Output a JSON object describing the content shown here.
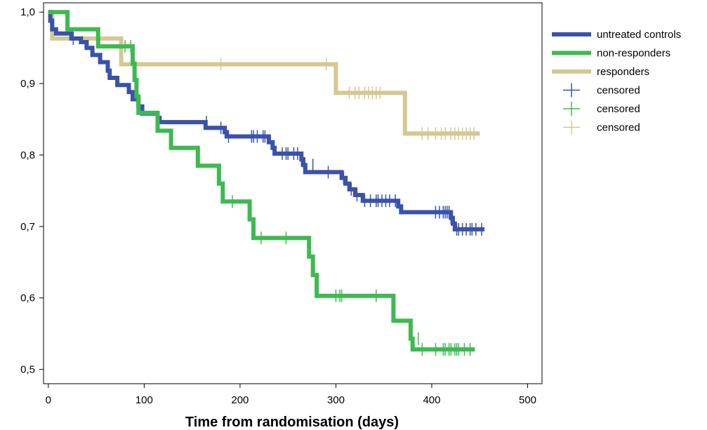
{
  "chart_data": {
    "type": "line",
    "title": "",
    "xlabel": "Time from randomisation (days)",
    "ylabel": "",
    "xlim": [
      -5,
      515
    ],
    "ylim": [
      0.48,
      1.013
    ],
    "xticks": [
      0,
      100,
      200,
      300,
      400,
      500
    ],
    "yticks": [
      0.5,
      0.6,
      0.7,
      0.8,
      0.9,
      1.0
    ],
    "ytick_labels": [
      "0,5",
      "0,6",
      "0,7",
      "0,8",
      "0,9",
      "1,0"
    ],
    "grid": false,
    "legend_position": "right",
    "series": [
      {
        "name": "untreated controls",
        "color": "#3a52a8",
        "steps": [
          [
            0,
            1.0
          ],
          [
            2,
            0.988
          ],
          [
            4,
            0.976
          ],
          [
            8,
            0.97
          ],
          [
            24,
            0.963
          ],
          [
            34,
            0.958
          ],
          [
            40,
            0.95
          ],
          [
            46,
            0.94
          ],
          [
            54,
            0.93
          ],
          [
            62,
            0.918
          ],
          [
            64,
            0.908
          ],
          [
            72,
            0.898
          ],
          [
            84,
            0.888
          ],
          [
            88,
            0.878
          ],
          [
            94,
            0.868
          ],
          [
            98,
            0.858
          ],
          [
            114,
            0.852
          ],
          [
            116,
            0.846
          ],
          [
            164,
            0.838
          ],
          [
            184,
            0.832
          ],
          [
            186,
            0.826
          ],
          [
            230,
            0.818
          ],
          [
            234,
            0.81
          ],
          [
            236,
            0.802
          ],
          [
            264,
            0.794
          ],
          [
            266,
            0.786
          ],
          [
            268,
            0.776
          ],
          [
            306,
            0.768
          ],
          [
            310,
            0.76
          ],
          [
            314,
            0.752
          ],
          [
            320,
            0.744
          ],
          [
            328,
            0.736
          ],
          [
            365,
            0.728
          ],
          [
            368,
            0.72
          ],
          [
            420,
            0.712
          ],
          [
            422,
            0.704
          ],
          [
            424,
            0.696
          ],
          [
            455,
            0.696
          ]
        ],
        "censored": [
          [
            26,
            0.963
          ],
          [
            165,
            0.846
          ],
          [
            180,
            0.838
          ],
          [
            188,
            0.826
          ],
          [
            212,
            0.826
          ],
          [
            214,
            0.826
          ],
          [
            218,
            0.826
          ],
          [
            224,
            0.826
          ],
          [
            226,
            0.826
          ],
          [
            244,
            0.802
          ],
          [
            248,
            0.802
          ],
          [
            250,
            0.802
          ],
          [
            256,
            0.802
          ],
          [
            260,
            0.802
          ],
          [
            264,
            0.794
          ],
          [
            276,
            0.786
          ],
          [
            292,
            0.776
          ],
          [
            308,
            0.768
          ],
          [
            316,
            0.752
          ],
          [
            322,
            0.744
          ],
          [
            330,
            0.736
          ],
          [
            336,
            0.736
          ],
          [
            342,
            0.736
          ],
          [
            344,
            0.736
          ],
          [
            348,
            0.736
          ],
          [
            352,
            0.736
          ],
          [
            356,
            0.736
          ],
          [
            362,
            0.736
          ],
          [
            404,
            0.72
          ],
          [
            408,
            0.72
          ],
          [
            412,
            0.72
          ],
          [
            414,
            0.72
          ],
          [
            416,
            0.72
          ],
          [
            418,
            0.72
          ],
          [
            420,
            0.712
          ],
          [
            426,
            0.696
          ],
          [
            428,
            0.696
          ],
          [
            432,
            0.696
          ],
          [
            436,
            0.696
          ],
          [
            440,
            0.696
          ],
          [
            442,
            0.696
          ],
          [
            446,
            0.696
          ],
          [
            452,
            0.696
          ]
        ]
      },
      {
        "name": "non-responders",
        "color": "#3dba4f",
        "steps": [
          [
            0,
            1.0
          ],
          [
            20,
            0.976
          ],
          [
            52,
            0.952
          ],
          [
            88,
            0.928
          ],
          [
            90,
            0.905
          ],
          [
            92,
            0.882
          ],
          [
            94,
            0.859
          ],
          [
            114,
            0.834
          ],
          [
            128,
            0.81
          ],
          [
            156,
            0.785
          ],
          [
            178,
            0.76
          ],
          [
            182,
            0.735
          ],
          [
            210,
            0.71
          ],
          [
            214,
            0.684
          ],
          [
            272,
            0.658
          ],
          [
            276,
            0.632
          ],
          [
            280,
            0.603
          ],
          [
            360,
            0.568
          ],
          [
            378,
            0.543
          ],
          [
            380,
            0.528
          ],
          [
            445,
            0.528
          ]
        ],
        "censored": [
          [
            80,
            0.952
          ],
          [
            86,
            0.952
          ],
          [
            192,
            0.735
          ],
          [
            222,
            0.684
          ],
          [
            248,
            0.684
          ],
          [
            300,
            0.603
          ],
          [
            304,
            0.603
          ],
          [
            306,
            0.603
          ],
          [
            342,
            0.603
          ],
          [
            386,
            0.543
          ],
          [
            390,
            0.528
          ],
          [
            404,
            0.528
          ],
          [
            412,
            0.528
          ],
          [
            414,
            0.528
          ],
          [
            418,
            0.528
          ],
          [
            420,
            0.528
          ],
          [
            424,
            0.528
          ],
          [
            426,
            0.528
          ],
          [
            428,
            0.528
          ],
          [
            434,
            0.528
          ],
          [
            440,
            0.528
          ]
        ]
      },
      {
        "name": "responders",
        "color": "#d4c892",
        "steps": [
          [
            0,
            1.0
          ],
          [
            4,
            0.963
          ],
          [
            76,
            0.927
          ],
          [
            300,
            0.887
          ],
          [
            372,
            0.83
          ],
          [
            450,
            0.83
          ]
        ],
        "censored": [
          [
            180,
            0.927
          ],
          [
            290,
            0.927
          ],
          [
            314,
            0.887
          ],
          [
            320,
            0.887
          ],
          [
            324,
            0.887
          ],
          [
            330,
            0.887
          ],
          [
            334,
            0.887
          ],
          [
            338,
            0.887
          ],
          [
            342,
            0.887
          ],
          [
            346,
            0.887
          ],
          [
            390,
            0.83
          ],
          [
            396,
            0.83
          ],
          [
            404,
            0.83
          ],
          [
            410,
            0.83
          ],
          [
            414,
            0.83
          ],
          [
            420,
            0.83
          ],
          [
            424,
            0.83
          ],
          [
            428,
            0.83
          ],
          [
            432,
            0.83
          ],
          [
            436,
            0.83
          ],
          [
            440,
            0.83
          ],
          [
            444,
            0.83
          ]
        ]
      }
    ],
    "legend": [
      {
        "label": "untreated controls",
        "kind": "line",
        "color": "#3a52a8"
      },
      {
        "label": "non-responders",
        "kind": "line",
        "color": "#3dba4f"
      },
      {
        "label": "responders",
        "kind": "line",
        "color": "#d4c892"
      },
      {
        "label": "censored",
        "kind": "censor",
        "color": "#3a52a8"
      },
      {
        "label": "censored",
        "kind": "censor",
        "color": "#3dba4f"
      },
      {
        "label": "censored",
        "kind": "censor",
        "color": "#d4c892"
      }
    ]
  }
}
